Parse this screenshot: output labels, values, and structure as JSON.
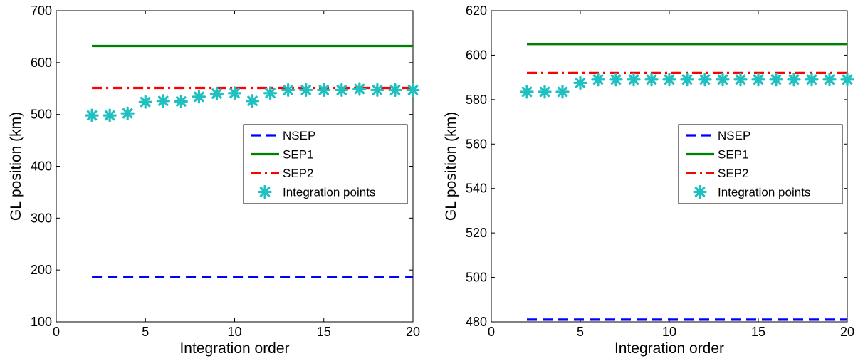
{
  "chart_data": [
    {
      "type": "line",
      "xlabel": "Integration order",
      "ylabel": "GL position (km)",
      "xlim": [
        0,
        20
      ],
      "ylim": [
        100,
        700
      ],
      "xticks": [
        0,
        5,
        10,
        15,
        20
      ],
      "yticks": [
        100,
        200,
        300,
        400,
        500,
        600,
        700
      ],
      "legend_position": "center-right",
      "grid": false,
      "series": [
        {
          "name": "NSEP",
          "style": "dashed",
          "color": "#0000ff",
          "x": [
            2,
            20
          ],
          "y": [
            187,
            187
          ]
        },
        {
          "name": "SEP1",
          "style": "solid",
          "color": "#008000",
          "x": [
            2,
            20
          ],
          "y": [
            632,
            632
          ]
        },
        {
          "name": "SEP2",
          "style": "dashdot",
          "color": "#ff0000",
          "x": [
            2,
            20
          ],
          "y": [
            551,
            551
          ]
        },
        {
          "name": "Integration points",
          "style": "asterisk",
          "color": "#20c0c0",
          "x": [
            2,
            3,
            4,
            5,
            6,
            7,
            8,
            9,
            10,
            11,
            12,
            13,
            14,
            15,
            16,
            17,
            18,
            19,
            20
          ],
          "y": [
            498,
            498,
            502,
            524,
            526,
            525,
            534,
            540,
            541,
            526,
            541,
            547,
            547,
            547,
            547,
            549,
            547,
            547,
            547
          ]
        }
      ]
    },
    {
      "type": "line",
      "xlabel": "Integration order",
      "ylabel": "GL position (km)",
      "xlim": [
        0,
        20
      ],
      "ylim": [
        480,
        620
      ],
      "xticks": [
        0,
        5,
        10,
        15,
        20
      ],
      "yticks": [
        480,
        500,
        520,
        540,
        560,
        580,
        600,
        620
      ],
      "legend_position": "center-right",
      "grid": false,
      "series": [
        {
          "name": "NSEP",
          "style": "dashed",
          "color": "#0000ff",
          "x": [
            2,
            20
          ],
          "y": [
            481,
            481
          ]
        },
        {
          "name": "SEP1",
          "style": "solid",
          "color": "#008000",
          "x": [
            2,
            20
          ],
          "y": [
            605,
            605
          ]
        },
        {
          "name": "SEP2",
          "style": "dashdot",
          "color": "#ff0000",
          "x": [
            2,
            20
          ],
          "y": [
            592,
            592
          ]
        },
        {
          "name": "Integration points",
          "style": "asterisk",
          "color": "#20c0c0",
          "x": [
            2,
            3,
            4,
            5,
            6,
            7,
            8,
            9,
            10,
            11,
            12,
            13,
            14,
            15,
            16,
            17,
            18,
            19,
            20
          ],
          "y": [
            583.5,
            583.5,
            583.5,
            587.5,
            589,
            589,
            589,
            589,
            589,
            589,
            589,
            589,
            589,
            589,
            589,
            589,
            589,
            589,
            589
          ]
        }
      ]
    }
  ]
}
